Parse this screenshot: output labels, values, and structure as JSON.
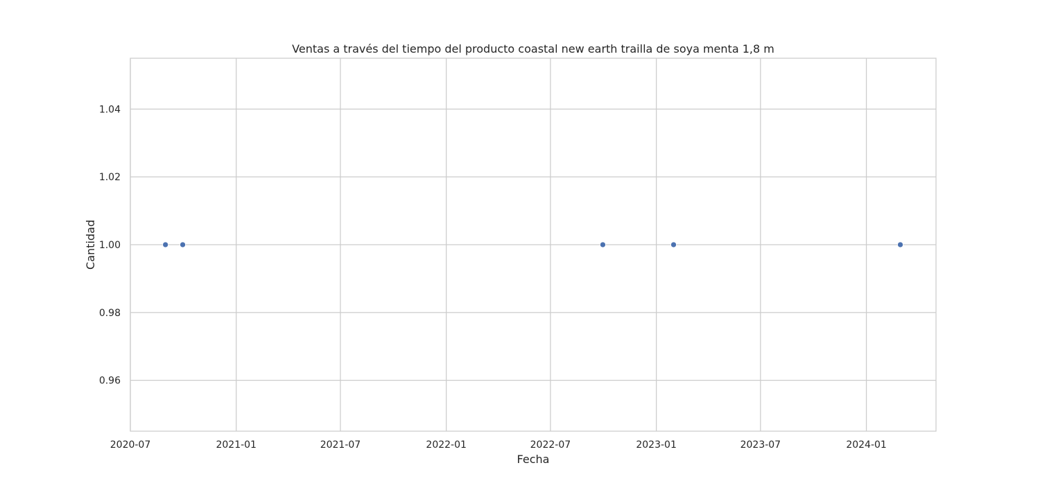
{
  "chart_data": {
    "type": "scatter",
    "title": "Ventas a través del tiempo del producto coastal new earth trailla de soya menta 1,8 m",
    "xlabel": "Fecha",
    "ylabel": "Cantidad",
    "x_type": "date",
    "xlim": [
      "2020-07-01",
      "2024-05-01"
    ],
    "ylim": [
      0.945,
      1.055
    ],
    "x_ticks": [
      "2020-07",
      "2021-01",
      "2021-07",
      "2022-01",
      "2022-07",
      "2023-01",
      "2023-07",
      "2024-01"
    ],
    "y_ticks": [
      "0.96",
      "0.98",
      "1.00",
      "1.02",
      "1.04"
    ],
    "grid": true,
    "legend": false,
    "series": [
      {
        "color": "#4c72b0",
        "x": [
          "2020-08-31",
          "2020-09-30",
          "2022-09-30",
          "2023-01-31",
          "2024-02-29"
        ],
        "y": [
          1,
          1,
          1,
          1,
          1
        ]
      }
    ]
  }
}
